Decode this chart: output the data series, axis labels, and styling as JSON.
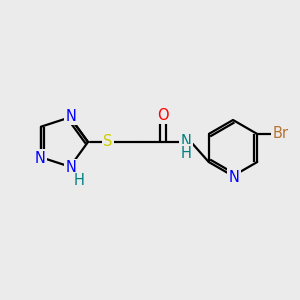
{
  "bg_color": "#ebebeb",
  "bond_color": "#000000",
  "bond_width": 1.6,
  "atom_colors": {
    "N": "#0000ff",
    "S": "#cccc00",
    "O": "#ff0000",
    "Br": "#b87333",
    "NH": "#008080",
    "N_pyridine": "#0000ff",
    "H": "#008080"
  },
  "font_size": 10.5
}
